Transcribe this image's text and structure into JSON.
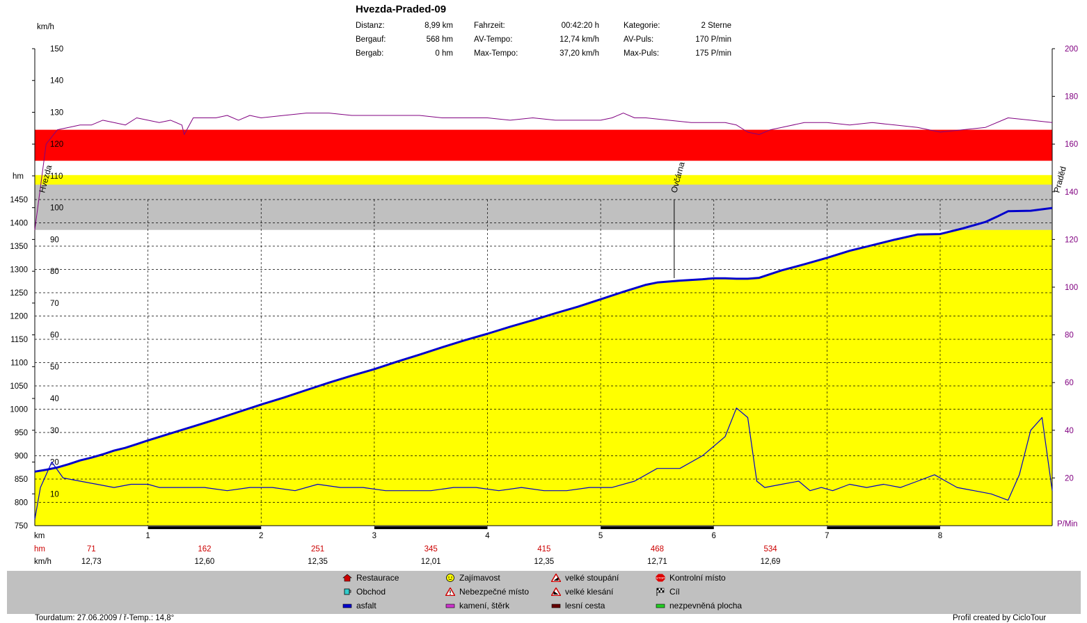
{
  "title": "Hvezda-Praded-09",
  "stats": [
    {
      "label": "Distanz:",
      "value": "8,99 km"
    },
    {
      "label": "Bergauf:",
      "value": "568 hm"
    },
    {
      "label": "Bergab:",
      "value": "0 hm"
    },
    {
      "label": "Fahrzeit:",
      "value": "00:42:20 h"
    },
    {
      "label": "AV-Tempo:",
      "value": "12,74 km/h"
    },
    {
      "label": "Max-Tempo:",
      "value": "37,20 km/h"
    },
    {
      "label": "Kategorie:",
      "value": "2 Sterne"
    },
    {
      "label": "AV-Puls:",
      "value": "170 P/min"
    },
    {
      "label": "Max-Puls:",
      "value": "175 P/min"
    }
  ],
  "axis_units": {
    "speed": "km/h",
    "elevation": "hm",
    "pulse": "P/Min",
    "distance": "km"
  },
  "row_labels": {
    "hm": "hm",
    "kmh": "km/h"
  },
  "chart_data": {
    "type": "line",
    "x_axis": {
      "label": "km",
      "ticks": [
        "1",
        "2",
        "3",
        "4",
        "5",
        "6",
        "7",
        "8"
      ],
      "range": [
        0,
        8.99
      ]
    },
    "left_axis_speed": {
      "label": "km/h",
      "ticks": [
        "10",
        "20",
        "30",
        "40",
        "50",
        "60",
        "70",
        "80",
        "90",
        "100",
        "110",
        "120",
        "130",
        "140",
        "150"
      ],
      "range": [
        0,
        150
      ]
    },
    "left_axis_elevation": {
      "label": "hm",
      "ticks": [
        "750",
        "800",
        "850",
        "900",
        "950",
        "1000",
        "1050",
        "1100",
        "1150",
        "1200",
        "1250",
        "1300",
        "1350",
        "1400",
        "1450"
      ],
      "range": [
        750,
        1450
      ]
    },
    "right_axis_pulse": {
      "label": "P/Min",
      "ticks": [
        "20",
        "40",
        "60",
        "80",
        "100",
        "120",
        "140",
        "160",
        "180",
        "200"
      ],
      "range": [
        0,
        200
      ]
    },
    "pulse_zones": [
      {
        "from": 140,
        "to": 147,
        "color": "#ffff00"
      },
      {
        "from": 153,
        "to": 166,
        "color": "#ff0000"
      }
    ],
    "grey_band_pulse": [
      124,
      143
    ],
    "elevation": {
      "x": [
        0,
        0.1,
        0.2,
        0.3,
        0.4,
        0.5,
        0.6,
        0.7,
        0.8,
        0.9,
        1,
        1.2,
        1.4,
        1.6,
        1.8,
        2,
        2.2,
        2.4,
        2.6,
        2.8,
        3,
        3.2,
        3.4,
        3.6,
        3.8,
        4,
        4.2,
        4.4,
        4.6,
        4.8,
        5,
        5.2,
        5.4,
        5.5,
        5.7,
        5.9,
        6,
        6.1,
        6.2,
        6.3,
        6.4,
        6.6,
        6.8,
        7,
        7.2,
        7.4,
        7.6,
        7.8,
        8,
        8.2,
        8.4,
        8.5,
        8.6,
        8.8,
        8.99
      ],
      "values": [
        866,
        870,
        875,
        882,
        890,
        896,
        903,
        911,
        917,
        925,
        933,
        948,
        963,
        978,
        994,
        1010,
        1025,
        1041,
        1057,
        1072,
        1086,
        1102,
        1117,
        1133,
        1148,
        1162,
        1177,
        1191,
        1206,
        1220,
        1236,
        1252,
        1267,
        1272,
        1276,
        1279,
        1281,
        1281,
        1280,
        1280,
        1282,
        1298,
        1311,
        1325,
        1340,
        1352,
        1364,
        1375,
        1376,
        1388,
        1402,
        1413,
        1425,
        1426,
        1432
      ],
      "color": "#0000cc"
    },
    "speed": {
      "x": [
        0,
        0.05,
        0.15,
        0.25,
        0.4,
        0.55,
        0.7,
        0.85,
        1,
        1.1,
        1.3,
        1.5,
        1.7,
        1.9,
        2.1,
        2.3,
        2.5,
        2.7,
        2.9,
        3.1,
        3.3,
        3.5,
        3.7,
        3.9,
        4.1,
        4.3,
        4.5,
        4.7,
        4.9,
        5.1,
        5.3,
        5.5,
        5.7,
        5.9,
        6,
        6.1,
        6.2,
        6.3,
        6.38,
        6.45,
        6.6,
        6.75,
        6.85,
        6.95,
        7.05,
        7.2,
        7.35,
        7.5,
        7.65,
        7.8,
        7.95,
        8.05,
        8.15,
        8.3,
        8.45,
        8.6,
        8.7,
        8.8,
        8.9,
        8.99
      ],
      "values": [
        2,
        12,
        20,
        15,
        14,
        13,
        12,
        13,
        13,
        12,
        12,
        12,
        11,
        12,
        12,
        11,
        13,
        12,
        12,
        11,
        11,
        11,
        12,
        12,
        11,
        12,
        11,
        11,
        12,
        12,
        14,
        18,
        18,
        22,
        25,
        28,
        37,
        34,
        14,
        12,
        13,
        14,
        11,
        12,
        11,
        13,
        12,
        13,
        12,
        14,
        16,
        14,
        12,
        11,
        10,
        8,
        16,
        30,
        34,
        11
      ],
      "color": "#0000cc"
    },
    "pulse": {
      "x": [
        0,
        0.1,
        0.2,
        0.3,
        0.4,
        0.5,
        0.6,
        0.7,
        0.8,
        0.9,
        1,
        1.1,
        1.2,
        1.3,
        1.32,
        1.4,
        1.5,
        1.6,
        1.7,
        1.8,
        1.9,
        2,
        2.2,
        2.4,
        2.6,
        2.8,
        3,
        3.2,
        3.4,
        3.6,
        3.8,
        4,
        4.2,
        4.4,
        4.6,
        4.8,
        5,
        5.1,
        5.2,
        5.3,
        5.4,
        5.6,
        5.8,
        6,
        6.1,
        6.2,
        6.3,
        6.4,
        6.5,
        6.6,
        6.8,
        7,
        7.2,
        7.4,
        7.6,
        7.8,
        8,
        8.2,
        8.4,
        8.6,
        8.8,
        8.99
      ],
      "values": [
        124,
        160,
        166,
        167,
        168,
        168,
        170,
        169,
        168,
        171,
        170,
        169,
        170,
        168,
        164,
        171,
        171,
        171,
        172,
        170,
        172,
        171,
        172,
        173,
        173,
        172,
        172,
        172,
        172,
        171,
        171,
        171,
        170,
        171,
        170,
        170,
        170,
        171,
        173,
        171,
        171,
        170,
        169,
        169,
        169,
        168,
        165,
        164,
        166,
        167,
        169,
        169,
        168,
        169,
        168,
        167,
        165,
        166,
        167,
        171,
        170,
        169
      ],
      "color": "#800080"
    },
    "waypoints": [
      {
        "name": "Hvezda",
        "x": 0.05
      },
      {
        "name": "Ovčárna",
        "x": 5.65
      },
      {
        "name": "Praděd",
        "x": 8.99
      }
    ],
    "hm_row": [
      {
        "x": 0.5,
        "value": "71"
      },
      {
        "x": 1.5,
        "value": "162"
      },
      {
        "x": 2.5,
        "value": "251"
      },
      {
        "x": 3.5,
        "value": "345"
      },
      {
        "x": 4.5,
        "value": "415"
      },
      {
        "x": 5.5,
        "value": "468"
      },
      {
        "x": 6.5,
        "value": "534"
      },
      {
        "x": 7.5,
        "value": ""
      }
    ],
    "kmh_row": [
      {
        "x": 0.5,
        "value": "12,73"
      },
      {
        "x": 1.5,
        "value": "12,60"
      },
      {
        "x": 2.5,
        "value": "12,35"
      },
      {
        "x": 3.5,
        "value": "12,01"
      },
      {
        "x": 4.5,
        "value": "12,35"
      },
      {
        "x": 5.5,
        "value": "12,71"
      },
      {
        "x": 6.5,
        "value": "12,69"
      }
    ],
    "surface_segments": [
      {
        "from": 1,
        "to": 2,
        "type": "asfalt"
      },
      {
        "from": 3,
        "to": 4,
        "type": "asfalt"
      },
      {
        "from": 5,
        "to": 6,
        "type": "asfalt"
      },
      {
        "from": 7,
        "to": 8,
        "type": "asfalt"
      }
    ]
  },
  "legend": [
    {
      "label": "Restaurace",
      "icon": "house-icon"
    },
    {
      "label": "Obchod",
      "icon": "cup-icon"
    },
    {
      "label": "asfalt",
      "icon": "surface-swatch",
      "color": "#0000cc"
    },
    {
      "label": "Zajímavost",
      "icon": "smiley-icon"
    },
    {
      "label": "Nebezpečné místo",
      "icon": "warning-icon"
    },
    {
      "label": "kamení, štěrk",
      "icon": "surface-swatch",
      "color": "#cc33cc"
    },
    {
      "label": "velké stoupání",
      "icon": "climb-icon"
    },
    {
      "label": "velké klesání",
      "icon": "descent-icon"
    },
    {
      "label": "lesní cesta",
      "icon": "surface-swatch",
      "color": "#660000"
    },
    {
      "label": "Kontrolní místo",
      "icon": "stop-icon"
    },
    {
      "label": "Cíl",
      "icon": "finish-flag-icon"
    },
    {
      "label": "nezpevněná plocha",
      "icon": "surface-swatch",
      "color": "#22cc22"
    }
  ],
  "footer": {
    "left": "Tourdatum: 27.06.2009  /  ř-Temp.: 14,8°",
    "right": "Profil created by CicloTour"
  }
}
